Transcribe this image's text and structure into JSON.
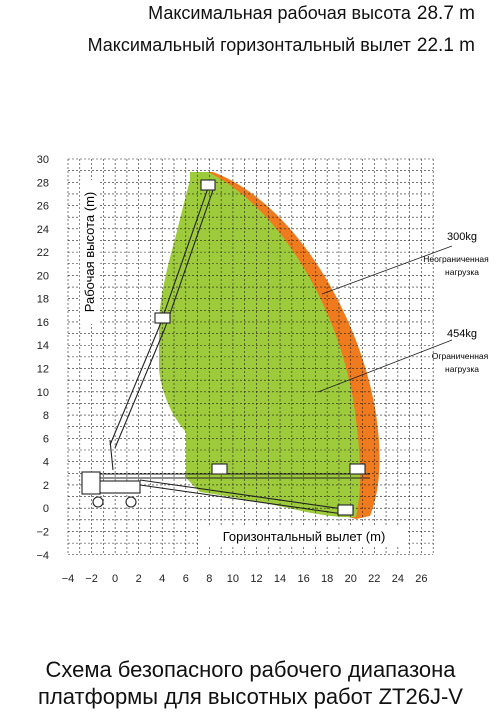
{
  "specs": [
    {
      "label": "Максимальная рабочая высота",
      "value": "28.7 m"
    },
    {
      "label": "Максимальный горизонтальный вылет",
      "value": "22.1 m"
    }
  ],
  "diagram": {
    "y_axis_label": "Рабочая высота (m)",
    "x_axis_label": "Горизонтальный вылет (m)",
    "x_ticks": [
      "−4",
      "−2",
      "0",
      "2",
      "4",
      "6",
      "8",
      "10",
      "12",
      "14",
      "16",
      "18",
      "20",
      "22",
      "24",
      "26"
    ],
    "y_ticks": [
      "30",
      "28",
      "26",
      "24",
      "22",
      "20",
      "18",
      "16",
      "14",
      "12",
      "10",
      "8",
      "6",
      "4",
      "2",
      "0",
      "−2",
      "−4"
    ],
    "zone_unrestricted": {
      "load": "300kg",
      "desc_line1": "Неограниченная",
      "desc_line2": "нагрузка",
      "color": "#f07a1e"
    },
    "zone_restricted": {
      "load": "454kg",
      "desc_line1": "Ограниченная",
      "desc_line2": "нагрузка",
      "color": "#9dcb3c"
    }
  },
  "caption": {
    "line1": "Схема безопасного рабочего диапазона",
    "line2": "платформы для высотных работ ZT26J-V"
  }
}
